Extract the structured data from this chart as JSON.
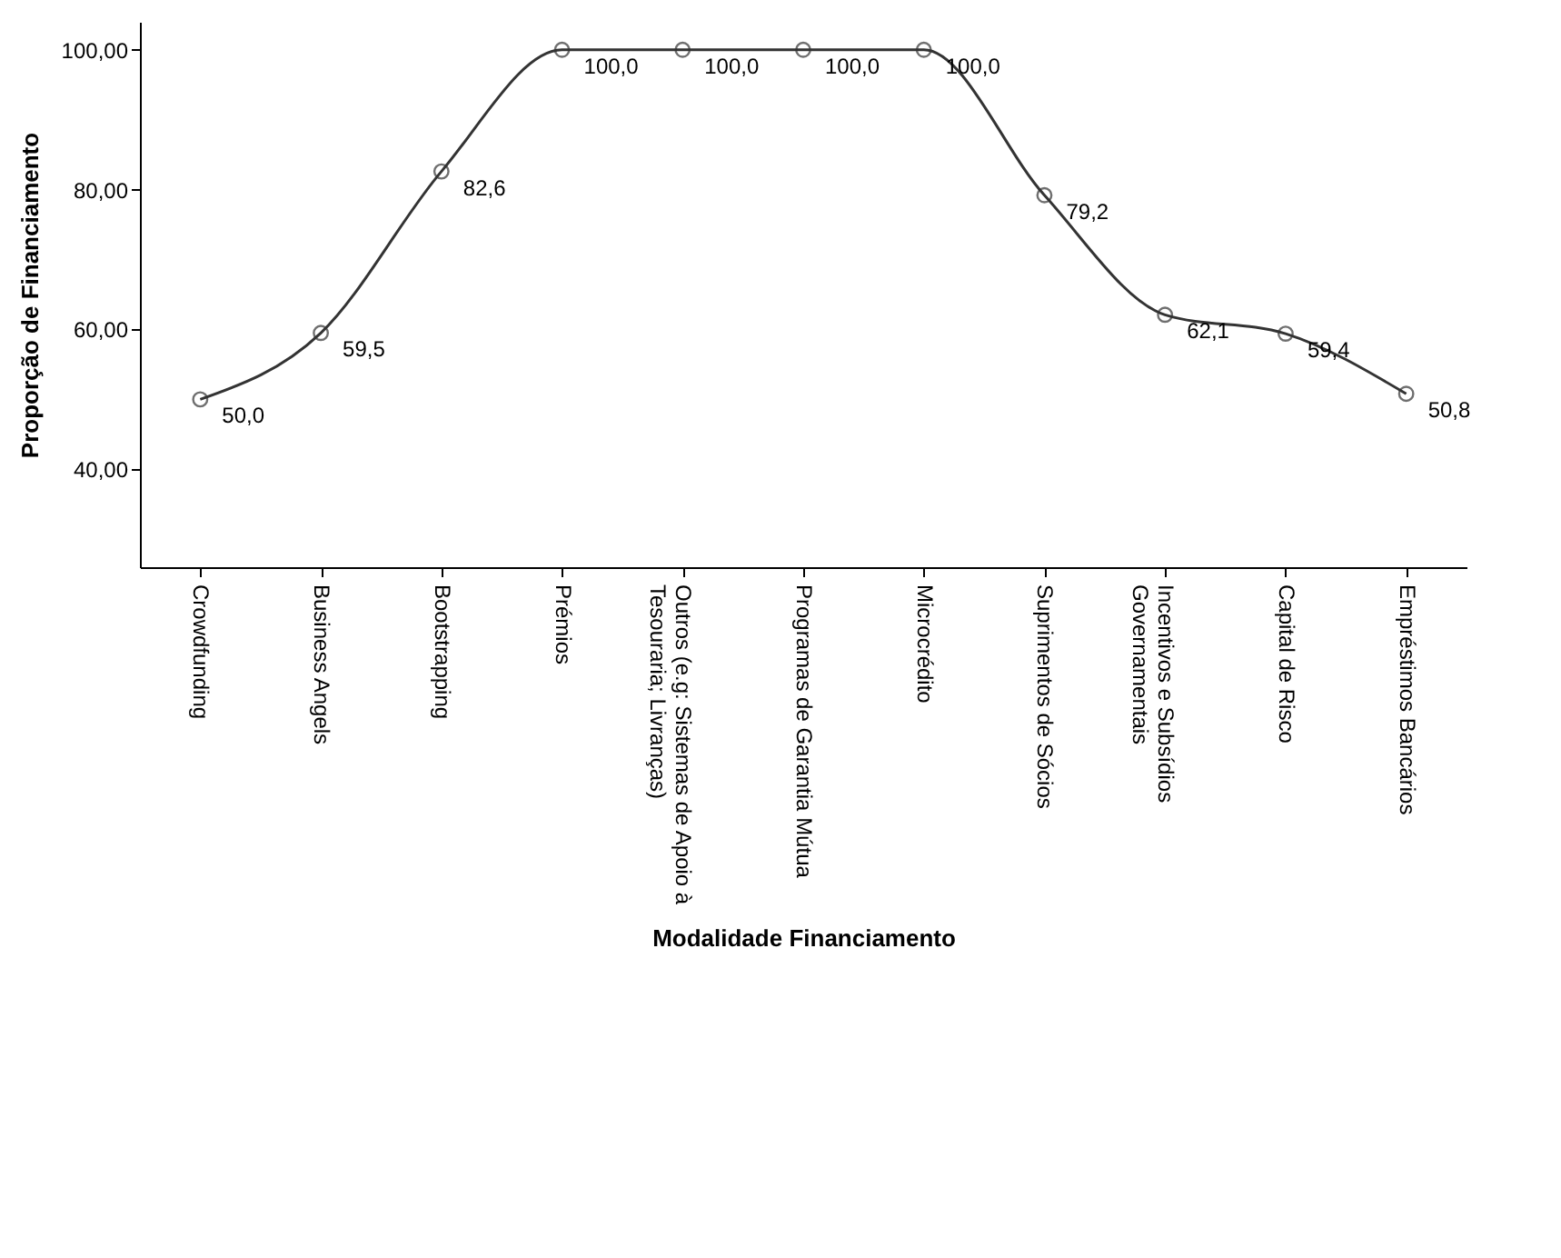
{
  "chart_data": {
    "type": "line",
    "xlabel": "Modalidade Financiamento",
    "ylabel": "Proporção de Financiamento",
    "categories": [
      "Crowdfunding",
      "Business Angels",
      "Bootstrapping",
      "Prémios",
      "Outros (e.g: Sistemas de Apoio à Tesouraria; Livranças)",
      "Programas de Garantia Mútua",
      "Microcrédito",
      "Suprimentos de Sócios",
      "Incentivos e Subsídios Governamentais",
      "Capital de Risco",
      "Empréstimos Bancários"
    ],
    "series": [
      {
        "color": "#333333",
        "values": [
          50.0,
          59.5,
          82.6,
          100.0,
          100.0,
          100.0,
          100.0,
          79.2,
          62.1,
          59.4,
          50.8
        ],
        "value_labels": [
          "50,0",
          "59,5",
          "82,6",
          "100,0",
          "100,0",
          "100,0",
          "100,0",
          "79,2",
          "62,1",
          "59,4",
          "50,8"
        ]
      }
    ],
    "ylim": [
      26,
      104
    ],
    "yticks": [
      {
        "value": 40,
        "label": "40,00"
      },
      {
        "value": 60,
        "label": "60,00"
      },
      {
        "value": 80,
        "label": "80,00"
      },
      {
        "value": 100,
        "label": "100,00"
      }
    ],
    "grid": false,
    "marker": "circle",
    "line_style": "solid"
  }
}
